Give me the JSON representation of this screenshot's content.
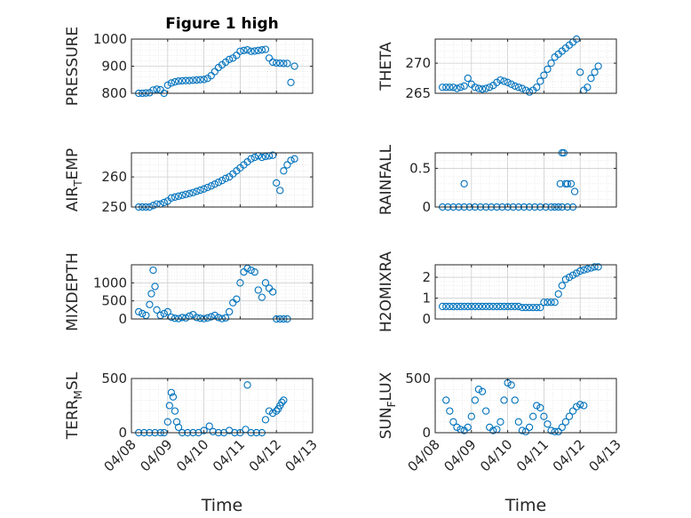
{
  "figure": {
    "background": "#ffffff",
    "marker_color": "#0072bd",
    "axis_color": "#262626",
    "grid_color": "#dfdfdf"
  },
  "chart_data": [
    {
      "type": "scatter",
      "title": "Figure 1 high",
      "ylabel": "PRESSURE",
      "xlabel": "",
      "ylim": [
        800,
        1000
      ],
      "yticks": [
        800,
        900,
        1000
      ],
      "ytick_labels": [
        "800",
        "900",
        "1000"
      ],
      "xlim": [
        "04/08",
        "04/13"
      ],
      "xticks": [
        "04/08",
        "04/09",
        "04/10",
        "04/11",
        "04/12",
        "04/13"
      ],
      "grid": true,
      "minor_grid": true,
      "series": [
        {
          "x": [
            0.2,
            0.3,
            0.4,
            0.5,
            0.6,
            0.7,
            0.8,
            0.9,
            1.0,
            1.1,
            1.2,
            1.3,
            1.4,
            1.5,
            1.6,
            1.7,
            1.8,
            1.9,
            2.0,
            2.1,
            2.2,
            2.3,
            2.4,
            2.5,
            2.6,
            2.7,
            2.8,
            2.9,
            3.0,
            3.1,
            3.2,
            3.3,
            3.4,
            3.5,
            3.6,
            3.7,
            3.8,
            3.9,
            4.0,
            4.1,
            4.2,
            4.3,
            4.4,
            4.5
          ],
          "y": [
            800,
            800,
            801,
            802,
            812,
            815,
            813,
            800,
            830,
            838,
            842,
            845,
            846,
            847,
            847,
            848,
            849,
            850,
            851,
            855,
            865,
            880,
            895,
            905,
            915,
            925,
            930,
            940,
            955,
            958,
            960,
            955,
            956,
            958,
            960,
            962,
            930,
            915,
            912,
            911,
            910,
            910,
            840,
            900
          ]
        }
      ]
    },
    {
      "type": "scatter",
      "title": "",
      "ylabel": "THETA",
      "xlabel": "",
      "ylim": [
        265,
        274
      ],
      "yticks": [
        265,
        270
      ],
      "ytick_labels": [
        "265",
        "270"
      ],
      "xlim": [
        "04/08",
        "04/13"
      ],
      "xticks": [
        "04/08",
        "04/09",
        "04/10",
        "04/11",
        "04/12",
        "04/13"
      ],
      "grid": true,
      "minor_grid": true,
      "series": [
        {
          "x": [
            0.2,
            0.3,
            0.4,
            0.5,
            0.6,
            0.7,
            0.8,
            0.9,
            1.0,
            1.1,
            1.2,
            1.3,
            1.4,
            1.5,
            1.6,
            1.7,
            1.8,
            1.9,
            2.0,
            2.1,
            2.2,
            2.3,
            2.4,
            2.5,
            2.6,
            2.7,
            2.8,
            2.9,
            3.0,
            3.1,
            3.2,
            3.3,
            3.4,
            3.5,
            3.6,
            3.7,
            3.8,
            3.9,
            4.0,
            4.1,
            4.2,
            4.3,
            4.4,
            4.5
          ],
          "y": [
            266,
            266,
            266,
            266,
            265.8,
            266,
            266.2,
            267.5,
            266.5,
            266,
            265.8,
            265.7,
            265.8,
            266,
            266.3,
            266.8,
            267.2,
            267,
            266.8,
            266.5,
            266.2,
            266,
            265.8,
            265.5,
            265.2,
            265.5,
            266,
            267,
            268,
            269,
            270,
            271,
            271.5,
            272,
            272.5,
            273,
            273.5,
            274,
            268.5,
            265.5,
            266,
            267.5,
            268.5,
            269.5
          ]
        }
      ]
    },
    {
      "type": "scatter",
      "title": "",
      "ylabel": "AIR_TEMP",
      "xlabel": "",
      "ylim": [
        250,
        268
      ],
      "yticks": [
        250,
        260
      ],
      "ytick_labels": [
        "250",
        "260"
      ],
      "xlim": [
        "04/08",
        "04/13"
      ],
      "xticks": [
        "04/08",
        "04/09",
        "04/10",
        "04/11",
        "04/12",
        "04/13"
      ],
      "grid": true,
      "minor_grid": true,
      "series": [
        {
          "x": [
            0.2,
            0.3,
            0.4,
            0.5,
            0.6,
            0.7,
            0.8,
            0.9,
            1.0,
            1.1,
            1.2,
            1.3,
            1.4,
            1.5,
            1.6,
            1.7,
            1.8,
            1.9,
            2.0,
            2.1,
            2.2,
            2.3,
            2.4,
            2.5,
            2.6,
            2.7,
            2.8,
            2.9,
            3.0,
            3.1,
            3.2,
            3.3,
            3.4,
            3.5,
            3.6,
            3.7,
            3.8,
            3.9,
            4.0,
            4.1,
            4.2,
            4.3,
            4.4,
            4.5
          ],
          "y": [
            250,
            250,
            250,
            250,
            250.5,
            251,
            251,
            251.5,
            252,
            253,
            253.3,
            253.6,
            253.9,
            254.2,
            254.5,
            254.8,
            255.2,
            255.6,
            256,
            256.5,
            257,
            257.6,
            258.2,
            258.8,
            259.5,
            260,
            261,
            262,
            263,
            264,
            265,
            266,
            266.5,
            267,
            266.5,
            266.8,
            267,
            267.2,
            258,
            255.5,
            262,
            264,
            265.5,
            266
          ]
        }
      ]
    },
    {
      "type": "scatter",
      "title": "",
      "ylabel": "RAINFALL",
      "xlabel": "",
      "ylim": [
        0,
        0.7
      ],
      "yticks": [
        0,
        0.5
      ],
      "ytick_labels": [
        "0",
        "0.5"
      ],
      "xlim": [
        "04/08",
        "04/13"
      ],
      "xticks": [
        "04/08",
        "04/09",
        "04/10",
        "04/11",
        "04/12",
        "04/13"
      ],
      "grid": true,
      "minor_grid": true,
      "series": [
        {
          "x": [
            0.2,
            0.35,
            0.5,
            0.65,
            0.8,
            0.95,
            1.1,
            1.25,
            1.4,
            1.55,
            1.7,
            1.85,
            2.0,
            2.15,
            2.3,
            2.45,
            2.6,
            2.75,
            2.9,
            3.05,
            3.2,
            3.3,
            3.4,
            3.5,
            3.65,
            3.8,
            0.8,
            3.45,
            3.5,
            3.55,
            3.6,
            3.65,
            3.75,
            3.85
          ],
          "y": [
            0,
            0,
            0,
            0,
            0,
            0,
            0,
            0,
            0,
            0,
            0,
            0,
            0,
            0,
            0,
            0,
            0,
            0,
            0,
            0,
            0,
            0,
            0,
            0,
            0,
            0,
            0.3,
            0.3,
            0.7,
            0.7,
            0.3,
            0.3,
            0.3,
            0.2
          ]
        }
      ]
    },
    {
      "type": "scatter",
      "title": "",
      "ylabel": "MIXDEPTH",
      "xlabel": "",
      "ylim": [
        0,
        1500
      ],
      "yticks": [
        0,
        500,
        1000
      ],
      "ytick_labels": [
        "0",
        "500",
        "1000"
      ],
      "xlim": [
        "04/08",
        "04/13"
      ],
      "xticks": [
        "04/08",
        "04/09",
        "04/10",
        "04/11",
        "04/12",
        "04/13"
      ],
      "grid": true,
      "minor_grid": true,
      "series": [
        {
          "x": [
            0.2,
            0.3,
            0.4,
            0.5,
            0.55,
            0.6,
            0.65,
            0.7,
            0.8,
            0.9,
            1.0,
            1.1,
            1.2,
            1.3,
            1.4,
            1.5,
            1.6,
            1.7,
            1.8,
            1.9,
            2.0,
            2.1,
            2.2,
            2.3,
            2.4,
            2.5,
            2.6,
            2.7,
            2.8,
            2.9,
            3.0,
            3.1,
            3.2,
            3.3,
            3.4,
            3.5,
            3.6,
            3.7,
            3.8,
            3.9,
            4.0,
            4.1,
            4.2,
            4.3
          ],
          "y": [
            200,
            150,
            100,
            400,
            700,
            1350,
            900,
            250,
            100,
            150,
            200,
            50,
            20,
            10,
            40,
            30,
            80,
            120,
            40,
            20,
            10,
            30,
            60,
            100,
            40,
            10,
            30,
            200,
            450,
            550,
            1000,
            1300,
            1400,
            1350,
            1300,
            800,
            600,
            1000,
            850,
            750,
            0,
            0,
            0,
            0
          ]
        }
      ]
    },
    {
      "type": "scatter",
      "title": "",
      "ylabel": "H2OMIXRA",
      "xlabel": "",
      "ylim": [
        0,
        2.6
      ],
      "yticks": [
        0,
        1,
        2
      ],
      "ytick_labels": [
        "0",
        "1",
        "2"
      ],
      "xlim": [
        "04/08",
        "04/13"
      ],
      "xticks": [
        "04/08",
        "04/09",
        "04/10",
        "04/11",
        "04/12",
        "04/13"
      ],
      "grid": true,
      "minor_grid": true,
      "series": [
        {
          "x": [
            0.2,
            0.3,
            0.4,
            0.5,
            0.6,
            0.7,
            0.8,
            0.9,
            1.0,
            1.1,
            1.2,
            1.3,
            1.4,
            1.5,
            1.6,
            1.7,
            1.8,
            1.9,
            2.0,
            2.1,
            2.2,
            2.3,
            2.4,
            2.5,
            2.6,
            2.7,
            2.8,
            2.9,
            3.0,
            3.1,
            3.2,
            3.3,
            3.4,
            3.5,
            3.6,
            3.7,
            3.8,
            3.9,
            4.0,
            4.1,
            4.2,
            4.3,
            4.4,
            4.5
          ],
          "y": [
            0.6,
            0.6,
            0.6,
            0.6,
            0.6,
            0.6,
            0.6,
            0.6,
            0.6,
            0.6,
            0.6,
            0.6,
            0.6,
            0.6,
            0.6,
            0.6,
            0.6,
            0.6,
            0.6,
            0.6,
            0.6,
            0.6,
            0.55,
            0.55,
            0.55,
            0.55,
            0.55,
            0.55,
            0.8,
            0.8,
            0.8,
            0.8,
            1.2,
            1.6,
            1.9,
            2.0,
            2.1,
            2.2,
            2.3,
            2.35,
            2.4,
            2.45,
            2.5,
            2.5
          ]
        }
      ]
    },
    {
      "type": "scatter",
      "title": "",
      "ylabel": "TERR_MSL",
      "xlabel": "",
      "ylim": [
        0,
        500
      ],
      "yticks": [
        0,
        500
      ],
      "ytick_labels": [
        "0",
        "500"
      ],
      "xlim": [
        "04/08",
        "04/13"
      ],
      "xticks": [
        "04/08",
        "04/09",
        "04/10",
        "04/11",
        "04/12",
        "04/13"
      ],
      "grid": true,
      "minor_grid": true,
      "series": [
        {
          "x": [
            0.2,
            0.35,
            0.5,
            0.65,
            0.8,
            0.9,
            1.0,
            1.05,
            1.1,
            1.15,
            1.2,
            1.25,
            1.3,
            1.4,
            1.55,
            1.7,
            1.85,
            2.0,
            2.15,
            2.25,
            2.4,
            2.55,
            2.7,
            2.85,
            3.0,
            3.15,
            3.2,
            3.3,
            3.45,
            3.6,
            3.7,
            3.8,
            3.9,
            4.0,
            4.05,
            4.1,
            4.15,
            4.2
          ],
          "y": [
            0,
            0,
            0,
            0,
            0,
            0,
            100,
            250,
            370,
            330,
            200,
            100,
            50,
            0,
            0,
            0,
            0,
            20,
            60,
            10,
            0,
            0,
            20,
            0,
            0,
            30,
            440,
            0,
            0,
            0,
            120,
            200,
            180,
            200,
            220,
            250,
            280,
            300
          ]
        }
      ]
    },
    {
      "type": "scatter",
      "title": "",
      "ylabel": "SUN_FLUX",
      "xlabel": "",
      "ylim": [
        0,
        500
      ],
      "yticks": [
        0,
        500
      ],
      "ytick_labels": [
        "0",
        "500"
      ],
      "xlim": [
        "04/08",
        "04/13"
      ],
      "xticks": [
        "04/08",
        "04/09",
        "04/10",
        "04/11",
        "04/12",
        "04/13"
      ],
      "grid": true,
      "minor_grid": true,
      "series": [
        {
          "x": [
            0.3,
            0.4,
            0.5,
            0.6,
            0.7,
            0.8,
            0.9,
            1.0,
            1.1,
            1.2,
            1.3,
            1.4,
            1.5,
            1.6,
            1.7,
            1.8,
            1.9,
            2.0,
            2.1,
            2.2,
            2.3,
            2.4,
            2.5,
            2.6,
            2.7,
            2.8,
            2.9,
            3.0,
            3.1,
            3.2,
            3.3,
            3.4,
            3.5,
            3.6,
            3.7,
            3.8,
            3.9,
            4.0,
            4.1
          ],
          "y": [
            300,
            200,
            100,
            50,
            30,
            20,
            50,
            150,
            300,
            400,
            380,
            200,
            50,
            20,
            30,
            100,
            300,
            460,
            440,
            300,
            100,
            20,
            10,
            50,
            150,
            250,
            230,
            150,
            80,
            20,
            10,
            10,
            50,
            100,
            150,
            200,
            240,
            260,
            250
          ]
        }
      ]
    }
  ],
  "xlabel": "Time"
}
